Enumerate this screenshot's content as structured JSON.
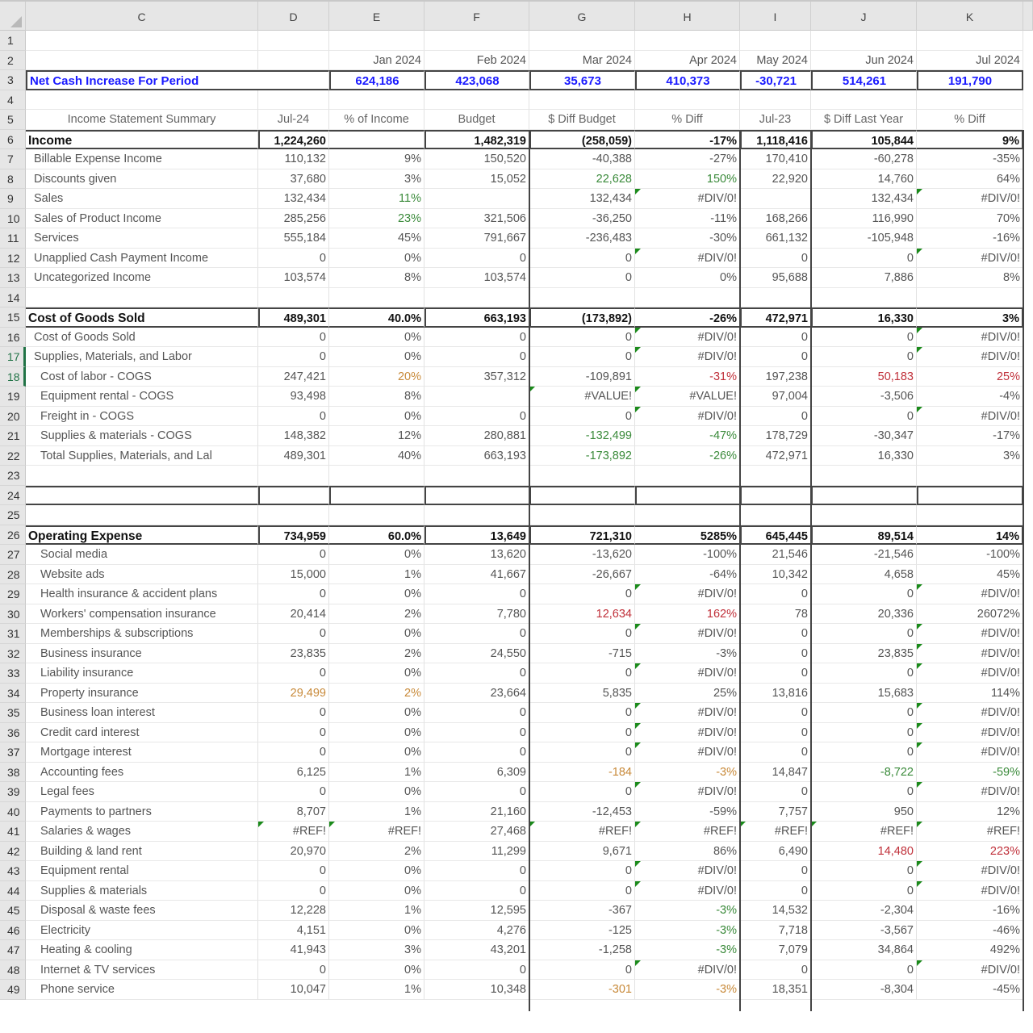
{
  "columns": [
    "C",
    "D",
    "E",
    "F",
    "G",
    "H",
    "I",
    "J",
    "K"
  ],
  "months": [
    "Jan 2024",
    "Feb 2024",
    "Mar 2024",
    "Apr 2024",
    "May 2024",
    "Jun 2024",
    "Jul 2024"
  ],
  "net_cash": {
    "label": "Net Cash Increase For Period",
    "values": [
      "624,186",
      "423,068",
      "35,673",
      "410,373",
      "-30,721",
      "514,261",
      "191,790"
    ]
  },
  "headers": [
    "Income Statement Summary",
    "Jul-24",
    "% of Income",
    "Budget",
    "$ Diff Budget",
    "% Diff",
    "Jul-23",
    "$ Diff Last Year",
    "% Diff"
  ],
  "colors": {
    "accent_blue": "#1a1aff",
    "favorable_green": "#3a8a3a",
    "unfavorable_red": "#c0303a",
    "warning_orange": "#c88a3a",
    "error_flag_green": "#1a8a1a"
  },
  "rows": [
    {
      "n": 6,
      "type": "section",
      "label": "Income",
      "d": "1,224,260",
      "e": "",
      "f": "1,482,319",
      "g": "(258,059)",
      "h": "-17%",
      "i": "1,118,416",
      "j": "105,844",
      "k": "9%"
    },
    {
      "n": 7,
      "type": "item",
      "label": "Billable Expense Income",
      "d": "110,132",
      "e": "9%",
      "f": "150,520",
      "g": "-40,388",
      "h": "-27%",
      "i": "170,410",
      "j": "-60,278",
      "k": "-35%"
    },
    {
      "n": 8,
      "type": "item",
      "label": "Discounts given",
      "d": "37,680",
      "e": "3%",
      "f": "15,052",
      "g": "22,628",
      "h": "150%",
      "i": "22,920",
      "j": "14,760",
      "k": "64%"
    },
    {
      "n": 9,
      "type": "item",
      "label": "Sales",
      "d": "132,434",
      "e": "11%",
      "f": "",
      "g": "132,434",
      "h": "#DIV/0!",
      "i": "",
      "j": "132,434",
      "k": "#DIV/0!"
    },
    {
      "n": 10,
      "type": "item",
      "label": "Sales of Product Income",
      "d": "285,256",
      "e": "23%",
      "f": "321,506",
      "g": "-36,250",
      "h": "-11%",
      "i": "168,266",
      "j": "116,990",
      "k": "70%"
    },
    {
      "n": 11,
      "type": "item",
      "label": "Services",
      "d": "555,184",
      "e": "45%",
      "f": "791,667",
      "g": "-236,483",
      "h": "-30%",
      "i": "661,132",
      "j": "-105,948",
      "k": "-16%"
    },
    {
      "n": 12,
      "type": "item",
      "label": "Unapplied Cash Payment Income",
      "d": "0",
      "e": "0%",
      "f": "0",
      "g": "0",
      "h": "#DIV/0!",
      "i": "0",
      "j": "0",
      "k": "#DIV/0!"
    },
    {
      "n": 13,
      "type": "item",
      "label": "Uncategorized Income",
      "d": "103,574",
      "e": "8%",
      "f": "103,574",
      "g": "0",
      "h": "0%",
      "i": "95,688",
      "j": "7,886",
      "k": "8%"
    },
    {
      "n": 14,
      "type": "blank"
    },
    {
      "n": 15,
      "type": "section",
      "label": "Cost of Goods Sold",
      "d": "489,301",
      "e": "40.0%",
      "f": "663,193",
      "g": "(173,892)",
      "h": "-26%",
      "i": "472,971",
      "j": "16,330",
      "k": "3%"
    },
    {
      "n": 16,
      "type": "item",
      "label": "Cost of Goods Sold",
      "d": "0",
      "e": "0%",
      "f": "0",
      "g": "0",
      "h": "#DIV/0!",
      "i": "0",
      "j": "0",
      "k": "#DIV/0!"
    },
    {
      "n": 17,
      "type": "item",
      "label": "Supplies, Materials, and Labor",
      "d": "0",
      "e": "0%",
      "f": "0",
      "g": "0",
      "h": "#DIV/0!",
      "i": "0",
      "j": "0",
      "k": "#DIV/0!"
    },
    {
      "n": 18,
      "type": "sub",
      "label": "Cost of labor - COGS",
      "d": "247,421",
      "e": "20%",
      "f": "357,312",
      "g": "-109,891",
      "h": "-31%",
      "i": "197,238",
      "j": "50,183",
      "k": "25%"
    },
    {
      "n": 19,
      "type": "sub",
      "label": "Equipment rental - COGS",
      "d": "93,498",
      "e": "8%",
      "f": "",
      "g": "#VALUE!",
      "h": "#VALUE!",
      "i": "97,004",
      "j": "-3,506",
      "k": "-4%"
    },
    {
      "n": 20,
      "type": "sub",
      "label": "Freight in - COGS",
      "d": "0",
      "e": "0%",
      "f": "0",
      "g": "0",
      "h": "#DIV/0!",
      "i": "0",
      "j": "0",
      "k": "#DIV/0!"
    },
    {
      "n": 21,
      "type": "sub",
      "label": "Supplies & materials - COGS",
      "d": "148,382",
      "e": "12%",
      "f": "280,881",
      "g": "-132,499",
      "h": "-47%",
      "i": "178,729",
      "j": "-30,347",
      "k": "-17%"
    },
    {
      "n": 22,
      "type": "sub",
      "label": "Total Supplies, Materials, and Lal",
      "d": "489,301",
      "e": "40%",
      "f": "663,193",
      "g": "-173,892",
      "h": "-26%",
      "i": "472,971",
      "j": "16,330",
      "k": "3%"
    },
    {
      "n": 23,
      "type": "blank"
    },
    {
      "n": 24,
      "type": "boxed"
    },
    {
      "n": 25,
      "type": "blank"
    },
    {
      "n": 26,
      "type": "section",
      "label": "Operating Expense",
      "d": "734,959",
      "e": "60.0%",
      "f": "13,649",
      "g": "721,310",
      "h": "5285%",
      "i": "645,445",
      "j": "89,514",
      "k": "14%"
    },
    {
      "n": 27,
      "type": "sub",
      "label": "Social media",
      "d": "0",
      "e": "0%",
      "f": "13,620",
      "g": "-13,620",
      "h": "-100%",
      "i": "21,546",
      "j": "-21,546",
      "k": "-100%"
    },
    {
      "n": 28,
      "type": "sub",
      "label": "Website ads",
      "d": "15,000",
      "e": "1%",
      "f": "41,667",
      "g": "-26,667",
      "h": "-64%",
      "i": "10,342",
      "j": "4,658",
      "k": "45%"
    },
    {
      "n": 29,
      "type": "sub",
      "label": "Health insurance & accident plans",
      "d": "0",
      "e": "0%",
      "f": "0",
      "g": "0",
      "h": "#DIV/0!",
      "i": "0",
      "j": "0",
      "k": "#DIV/0!"
    },
    {
      "n": 30,
      "type": "sub",
      "label": "Workers' compensation insurance",
      "d": "20,414",
      "e": "2%",
      "f": "7,780",
      "g": "12,634",
      "h": "162%",
      "i": "78",
      "j": "20,336",
      "k": "26072%"
    },
    {
      "n": 31,
      "type": "sub",
      "label": "Memberships & subscriptions",
      "d": "0",
      "e": "0%",
      "f": "0",
      "g": "0",
      "h": "#DIV/0!",
      "i": "0",
      "j": "0",
      "k": "#DIV/0!"
    },
    {
      "n": 32,
      "type": "sub",
      "label": "Business insurance",
      "d": "23,835",
      "e": "2%",
      "f": "24,550",
      "g": "-715",
      "h": "-3%",
      "i": "0",
      "j": "23,835",
      "k": "#DIV/0!"
    },
    {
      "n": 33,
      "type": "sub",
      "label": "Liability insurance",
      "d": "0",
      "e": "0%",
      "f": "0",
      "g": "0",
      "h": "#DIV/0!",
      "i": "0",
      "j": "0",
      "k": "#DIV/0!"
    },
    {
      "n": 34,
      "type": "sub",
      "label": "Property insurance",
      "d": "29,499",
      "e": "2%",
      "f": "23,664",
      "g": "5,835",
      "h": "25%",
      "i": "13,816",
      "j": "15,683",
      "k": "114%"
    },
    {
      "n": 35,
      "type": "sub",
      "label": "Business loan interest",
      "d": "0",
      "e": "0%",
      "f": "0",
      "g": "0",
      "h": "#DIV/0!",
      "i": "0",
      "j": "0",
      "k": "#DIV/0!"
    },
    {
      "n": 36,
      "type": "sub",
      "label": "Credit card interest",
      "d": "0",
      "e": "0%",
      "f": "0",
      "g": "0",
      "h": "#DIV/0!",
      "i": "0",
      "j": "0",
      "k": "#DIV/0!"
    },
    {
      "n": 37,
      "type": "sub",
      "label": "Mortgage interest",
      "d": "0",
      "e": "0%",
      "f": "0",
      "g": "0",
      "h": "#DIV/0!",
      "i": "0",
      "j": "0",
      "k": "#DIV/0!"
    },
    {
      "n": 38,
      "type": "sub",
      "label": "Accounting fees",
      "d": "6,125",
      "e": "1%",
      "f": "6,309",
      "g": "-184",
      "h": "-3%",
      "i": "14,847",
      "j": "-8,722",
      "k": "-59%"
    },
    {
      "n": 39,
      "type": "sub",
      "label": "Legal fees",
      "d": "0",
      "e": "0%",
      "f": "0",
      "g": "0",
      "h": "#DIV/0!",
      "i": "0",
      "j": "0",
      "k": "#DIV/0!"
    },
    {
      "n": 40,
      "type": "sub",
      "label": "Payments to partners",
      "d": "8,707",
      "e": "1%",
      "f": "21,160",
      "g": "-12,453",
      "h": "-59%",
      "i": "7,757",
      "j": "950",
      "k": "12%"
    },
    {
      "n": 41,
      "type": "sub",
      "label": "Salaries & wages",
      "d": "#REF!",
      "e": "#REF!",
      "f": "27,468",
      "g": "#REF!",
      "h": "#REF!",
      "i": "#REF!",
      "j": "#REF!",
      "k": "#REF!"
    },
    {
      "n": 42,
      "type": "sub",
      "label": "Building & land rent",
      "d": "20,970",
      "e": "2%",
      "f": "11,299",
      "g": "9,671",
      "h": "86%",
      "i": "6,490",
      "j": "14,480",
      "k": "223%"
    },
    {
      "n": 43,
      "type": "sub",
      "label": "Equipment rental",
      "d": "0",
      "e": "0%",
      "f": "0",
      "g": "0",
      "h": "#DIV/0!",
      "i": "0",
      "j": "0",
      "k": "#DIV/0!"
    },
    {
      "n": 44,
      "type": "sub",
      "label": "Supplies & materials",
      "d": "0",
      "e": "0%",
      "f": "0",
      "g": "0",
      "h": "#DIV/0!",
      "i": "0",
      "j": "0",
      "k": "#DIV/0!"
    },
    {
      "n": 45,
      "type": "sub",
      "label": "Disposal & waste fees",
      "d": "12,228",
      "e": "1%",
      "f": "12,595",
      "g": "-367",
      "h": "-3%",
      "i": "14,532",
      "j": "-2,304",
      "k": "-16%"
    },
    {
      "n": 46,
      "type": "sub",
      "label": "Electricity",
      "d": "4,151",
      "e": "0%",
      "f": "4,276",
      "g": "-125",
      "h": "-3%",
      "i": "7,718",
      "j": "-3,567",
      "k": "-46%"
    },
    {
      "n": 47,
      "type": "sub",
      "label": "Heating & cooling",
      "d": "41,943",
      "e": "3%",
      "f": "43,201",
      "g": "-1,258",
      "h": "-3%",
      "i": "7,079",
      "j": "34,864",
      "k": "492%"
    },
    {
      "n": 48,
      "type": "sub",
      "label": "Internet & TV services",
      "d": "0",
      "e": "0%",
      "f": "0",
      "g": "0",
      "h": "#DIV/0!",
      "i": "0",
      "j": "0",
      "k": "#DIV/0!"
    },
    {
      "n": 49,
      "type": "sub",
      "label": "Phone service",
      "d": "10,047",
      "e": "1%",
      "f": "10,348",
      "g": "-301",
      "h": "-3%",
      "i": "18,351",
      "j": "-8,304",
      "k": "-45%"
    }
  ],
  "cell_colors": {
    "9.e": "green",
    "10.e": "green",
    "8.g": "green",
    "8.h": "green",
    "18.e": "orange",
    "18.h": "red",
    "18.j": "red",
    "18.k": "red",
    "21.g": "green",
    "21.h": "green",
    "22.g": "green",
    "22.h": "green",
    "30.g": "red",
    "30.h": "red",
    "34.d": "orange",
    "34.e": "orange",
    "38.g": "orange",
    "38.h": "orange",
    "38.j": "green",
    "38.k": "green",
    "42.j": "red",
    "42.k": "red",
    "45.h": "green",
    "46.h": "green",
    "47.h": "green",
    "49.g": "orange",
    "49.h": "orange"
  },
  "error_flags": [
    "9.h",
    "9.k",
    "12.h",
    "12.k",
    "16.h",
    "16.k",
    "17.h",
    "17.k",
    "19.g",
    "19.h",
    "20.h",
    "20.k",
    "29.h",
    "29.k",
    "31.h",
    "31.k",
    "32.k",
    "33.h",
    "33.k",
    "35.h",
    "35.k",
    "36.h",
    "36.k",
    "37.h",
    "37.k",
    "39.h",
    "39.k",
    "41.d",
    "41.e",
    "41.g",
    "41.h",
    "41.i",
    "41.j",
    "41.k",
    "43.h",
    "43.k",
    "44.h",
    "44.k",
    "48.h",
    "48.k"
  ]
}
